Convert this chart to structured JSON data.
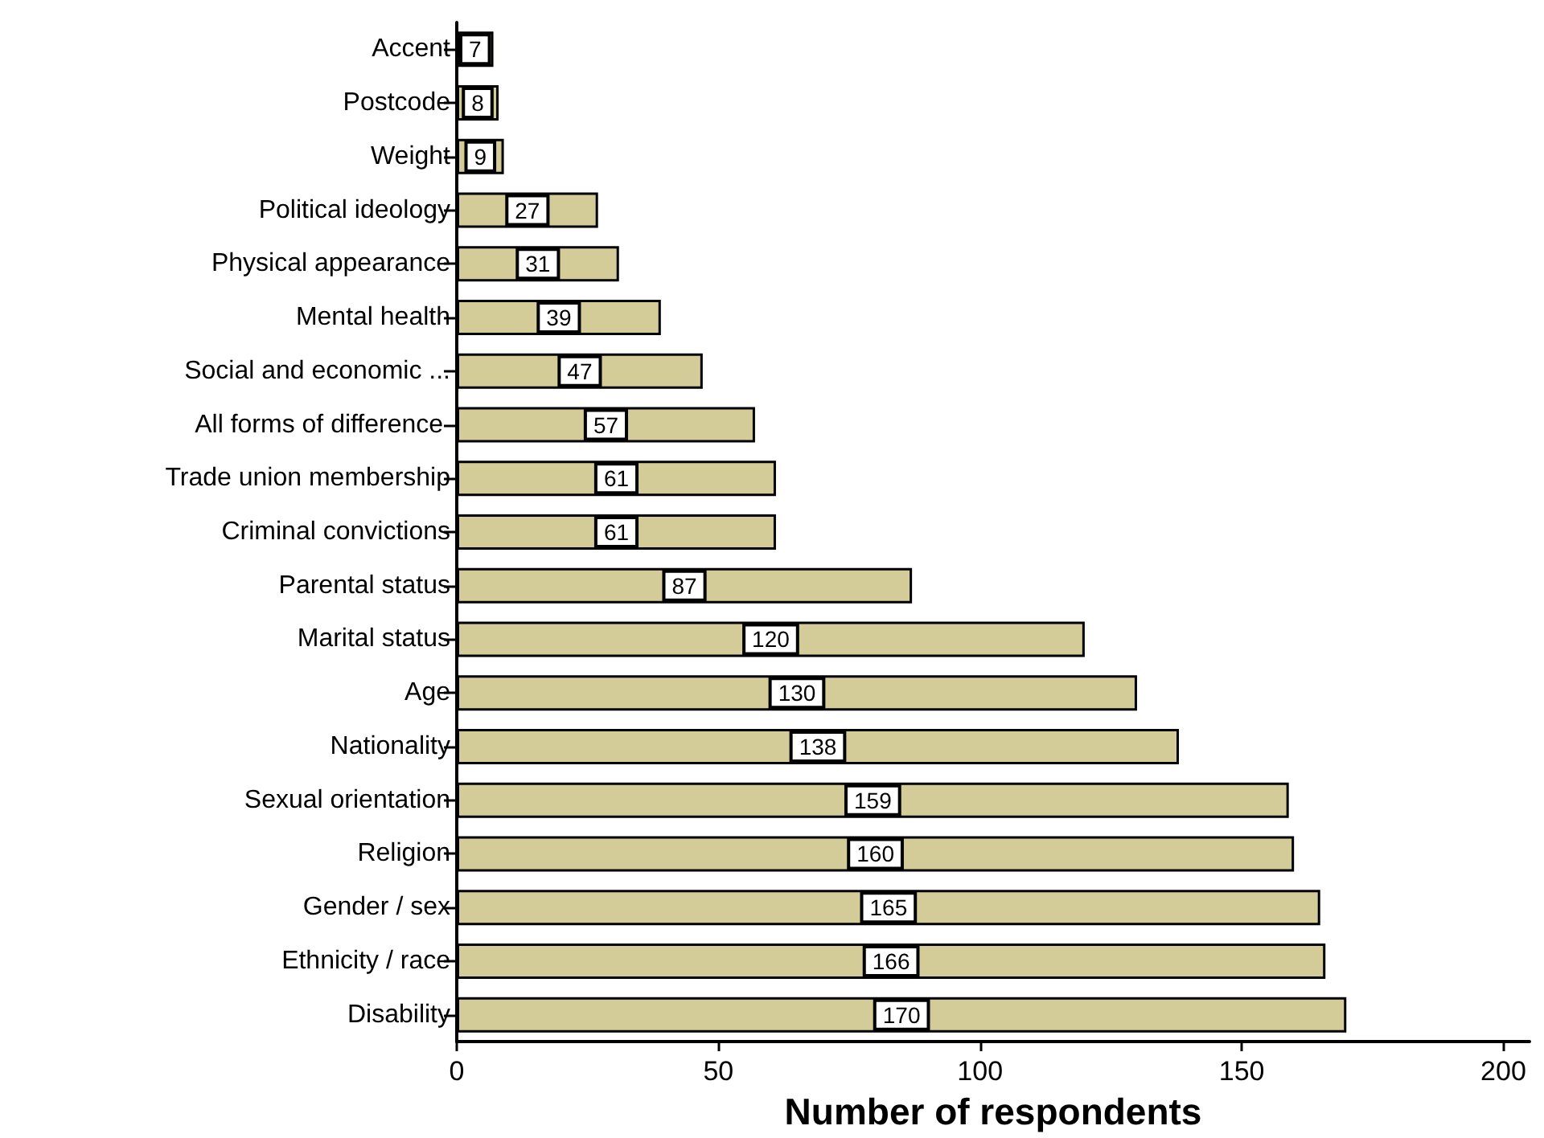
{
  "chart_data": {
    "type": "bar",
    "orientation": "horizontal",
    "categories": [
      "Accent",
      "Postcode",
      "Weight",
      "Political ideology",
      "Physical appearance",
      "Mental health",
      "Social and economic ...",
      "All forms of difference ",
      "Trade union membership",
      "Criminal convictions",
      "Parental status",
      "Marital status",
      "Age",
      "Nationality",
      "Sexual orientation",
      "Religion",
      "Gender / sex",
      "Ethnicity / race",
      "Disability"
    ],
    "values": [
      7,
      8,
      9,
      27,
      31,
      39,
      47,
      57,
      61,
      61,
      87,
      120,
      130,
      138,
      159,
      160,
      165,
      166,
      170
    ],
    "color": "#d3cb98",
    "xlim": [
      0,
      205
    ],
    "xticks": [
      0,
      50,
      100,
      150,
      200
    ],
    "xlabel": "Number of respondents",
    "data_labels": true
  }
}
